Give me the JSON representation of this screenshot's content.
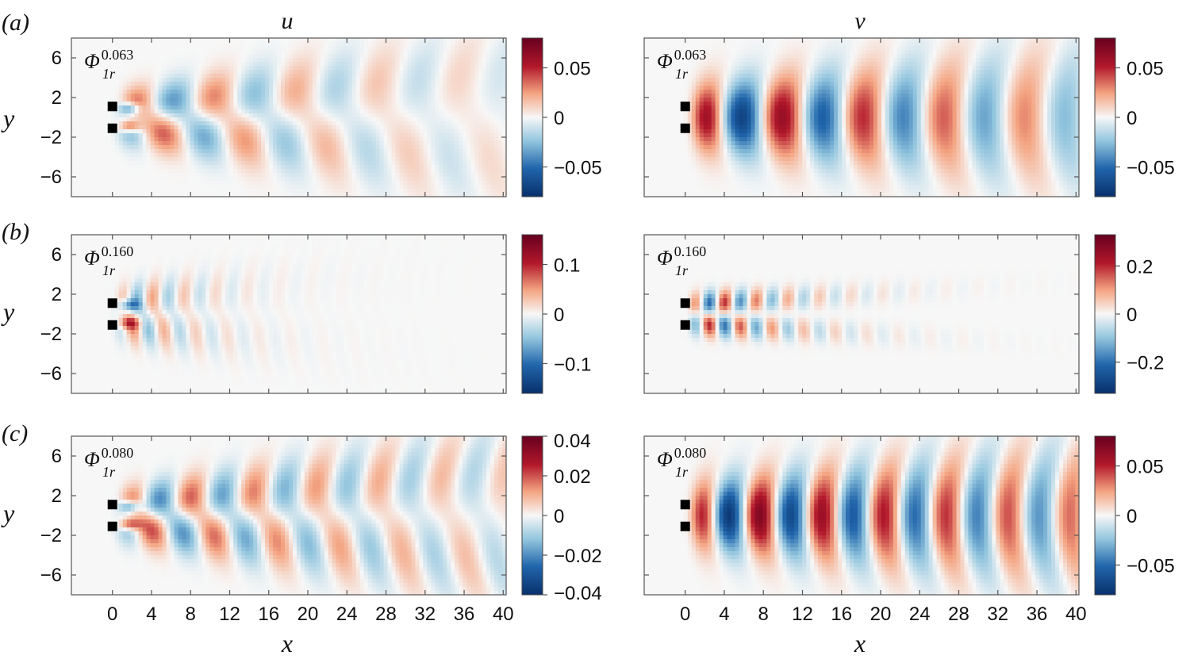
{
  "figure": {
    "column_titles": [
      "u",
      "v"
    ],
    "xlabel": "x",
    "ylabel": "y",
    "x_ticks": [
      0,
      4,
      8,
      12,
      16,
      20,
      24,
      28,
      32,
      36,
      40
    ],
    "y_ticks": [
      6,
      2,
      -2,
      -6
    ],
    "xlim": [
      -4.2,
      40.3
    ],
    "ylim": [
      -8,
      8
    ],
    "colormap": "RdBu_r",
    "colors": {
      "min": "#08306b",
      "neg": "#2166ac",
      "mid": "#f7f7f7",
      "pos": "#b2182b",
      "max": "#67001f"
    },
    "bodies": [
      {
        "x": 0,
        "y": 1.1
      },
      {
        "x": 0,
        "y": -1.1
      }
    ]
  },
  "chart_data": [
    {
      "type": "heatmap",
      "row": "(a)",
      "column": "u",
      "mode_symbol": "Φ",
      "mode_sub": "1r",
      "mode_sup": "0.063",
      "colorbar": {
        "min": -0.08,
        "max": 0.08,
        "ticks": [
          0.05,
          0,
          -0.05
        ],
        "tick_labels": [
          "0.05",
          "0",
          "−0.05"
        ]
      },
      "field": {
        "wavenumber": 0.76,
        "decay": 0.045,
        "amplitude": 1.0,
        "symmetry": "antisymmetric_u"
      }
    },
    {
      "type": "heatmap",
      "row": "(a)",
      "column": "v",
      "mode_symbol": "Φ",
      "mode_sub": "1r",
      "mode_sup": "0.063",
      "colorbar": {
        "min": -0.08,
        "max": 0.08,
        "ticks": [
          0.05,
          0,
          -0.05
        ],
        "tick_labels": [
          "0.05",
          "0",
          "−0.05"
        ]
      },
      "field": {
        "wavenumber": 0.76,
        "decay": 0.03,
        "amplitude": 1.0,
        "symmetry": "symmetric_v"
      }
    },
    {
      "type": "heatmap",
      "row": "(b)",
      "column": "u",
      "mode_symbol": "Φ",
      "mode_sub": "1r",
      "mode_sup": "0.160",
      "colorbar": {
        "min": -0.16,
        "max": 0.16,
        "ticks": [
          0.1,
          0,
          -0.1
        ],
        "tick_labels": [
          "0.1",
          "0",
          "−0.1"
        ]
      },
      "field": {
        "wavenumber": 1.95,
        "decay": 0.16,
        "amplitude": 1.0,
        "symmetry": "antisymmetric_u"
      }
    },
    {
      "type": "heatmap",
      "row": "(b)",
      "column": "v",
      "mode_symbol": "Φ",
      "mode_sub": "1r",
      "mode_sup": "0.160",
      "colorbar": {
        "min": -0.33,
        "max": 0.33,
        "ticks": [
          0.2,
          0,
          -0.2
        ],
        "tick_labels": [
          "0.2",
          "0",
          "−0.2"
        ]
      },
      "field": {
        "wavenumber": 1.95,
        "decay": 0.13,
        "amplitude": 1.0,
        "symmetry": "antisymmetric_v"
      }
    },
    {
      "type": "heatmap",
      "row": "(c)",
      "column": "u",
      "mode_symbol": "Φ",
      "mode_sub": "1r",
      "mode_sup": "0.080",
      "colorbar": {
        "min": -0.04,
        "max": 0.04,
        "ticks": [
          0.04,
          0.02,
          0,
          -0.02,
          -0.04
        ],
        "tick_labels": [
          "0.04",
          "0.02",
          "0",
          "−0.02",
          "−0.04"
        ]
      },
      "field": {
        "wavenumber": 0.99,
        "decay": 0.03,
        "amplitude": 1.0,
        "symmetry": "antisymmetric_u"
      }
    },
    {
      "type": "heatmap",
      "row": "(c)",
      "column": "v",
      "mode_symbol": "Φ",
      "mode_sub": "1r",
      "mode_sup": "0.080",
      "colorbar": {
        "min": -0.08,
        "max": 0.08,
        "ticks": [
          0.05,
          0,
          -0.05
        ],
        "tick_labels": [
          "0.05",
          "0",
          "−0.05"
        ]
      },
      "field": {
        "wavenumber": 0.99,
        "decay": 0.022,
        "amplitude": 1.0,
        "symmetry": "symmetric_v"
      }
    }
  ]
}
